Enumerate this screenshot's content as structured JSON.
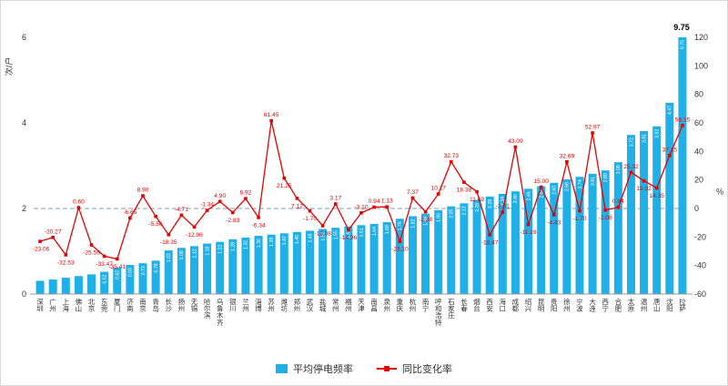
{
  "chart": {
    "y_left": {
      "title": "次/户",
      "ticks": [
        0,
        2,
        4,
        6
      ]
    },
    "y_right": {
      "title": "%",
      "ticks": [
        120,
        100,
        80,
        60,
        40,
        20,
        0,
        -20,
        -40,
        -60
      ]
    },
    "legend": {
      "bar_label": "平均停电频率",
      "line_label": "同比变化率"
    },
    "colors": {
      "bar": "#1fb0e8",
      "bar_inner_label": "#ffffff",
      "line": "#e60000",
      "data_label": "#e60000",
      "max_bar_label": "#000000",
      "dashed_reference": "#7f9fc6",
      "axis_text": "#333333",
      "axis_line": "#999999"
    },
    "max_bar_annotation": "9.75"
  },
  "chart_data": {
    "type": "bar",
    "subtype": "bar+line combo, dual axis",
    "title": "",
    "categories": [
      "深圳",
      "广州",
      "上海",
      "佛山",
      "北京",
      "东莞",
      "厦门",
      "济南",
      "南京",
      "青岛",
      "长沙",
      "扬州",
      "无锡",
      "哈尔滨",
      "乌鲁木齐",
      "银川",
      "兰州",
      "淄博",
      "苏州",
      "潍坊",
      "郑州",
      "武汉",
      "盐城",
      "常州",
      "福州",
      "天津",
      "南昌",
      "泉州",
      "重庆",
      "杭州",
      "南宁",
      "呼和浩特",
      "石家庄",
      "长春",
      "烟台",
      "西安",
      "海口",
      "成都",
      "绍兴",
      "昆明",
      "贵阳",
      "徐州",
      "宁波",
      "大连",
      "西宁",
      "合肥",
      "太原",
      "温州",
      "唐山",
      "沈阳",
      "拉萨"
    ],
    "series": [
      {
        "name": "平均停电频率",
        "type": "bar",
        "axis": "left",
        "unit": "次/户",
        "values": [
          0.31,
          0.34,
          0.38,
          0.42,
          0.46,
          0.52,
          0.62,
          0.68,
          0.72,
          0.78,
          1.02,
          1.08,
          1.12,
          1.18,
          1.22,
          1.28,
          1.32,
          1.36,
          1.39,
          1.42,
          1.45,
          1.48,
          1.52,
          1.55,
          1.58,
          1.61,
          1.64,
          1.68,
          1.76,
          1.82,
          1.88,
          1.96,
          2.05,
          2.12,
          2.2,
          2.28,
          2.34,
          2.4,
          2.46,
          2.52,
          2.6,
          2.68,
          2.74,
          2.81,
          2.89,
          3.08,
          3.72,
          3.81,
          3.92,
          4.47,
          9.75
        ]
      },
      {
        "name": "同比变化率",
        "type": "line",
        "axis": "right",
        "unit": "%",
        "values": [
          -23.06,
          -20.27,
          -32.53,
          0.6,
          -25.56,
          -33.47,
          -35.41,
          -6.65,
          8.9,
          -5.56,
          -18.35,
          -4.71,
          -12.96,
          -1.34,
          4.9,
          -2.83,
          6.92,
          -6.34,
          61.45,
          21.25,
          7.12,
          -1.7,
          -12.08,
          3.17,
          -14.96,
          -3.1,
          0.94,
          1.13,
          -23.1,
          7.37,
          -2.28,
          10.17,
          32.73,
          18.38,
          11.69,
          -18.47,
          -2.61,
          43.09,
          -11.28,
          15.0,
          -4.43,
          32.69,
          -1.7,
          52.97,
          -1.08,
          0.84,
          25.32,
          19.32,
          14.35,
          37.15,
          58.15
        ]
      }
    ],
    "left_ylim": [
      0,
      6
    ],
    "right_ylim": [
      -60,
      120
    ],
    "reference_line": {
      "axis": "right",
      "value": 0,
      "style": "dashed"
    },
    "legend_position": "bottom",
    "grid": false,
    "notes": "Last bar (拉萨) exceeds left axis max and is clipped at 6; its true value 9.75 is annotated in black above the bar. Bar values are printed vertically in white inside each bar; line values are printed in red beside each point."
  }
}
